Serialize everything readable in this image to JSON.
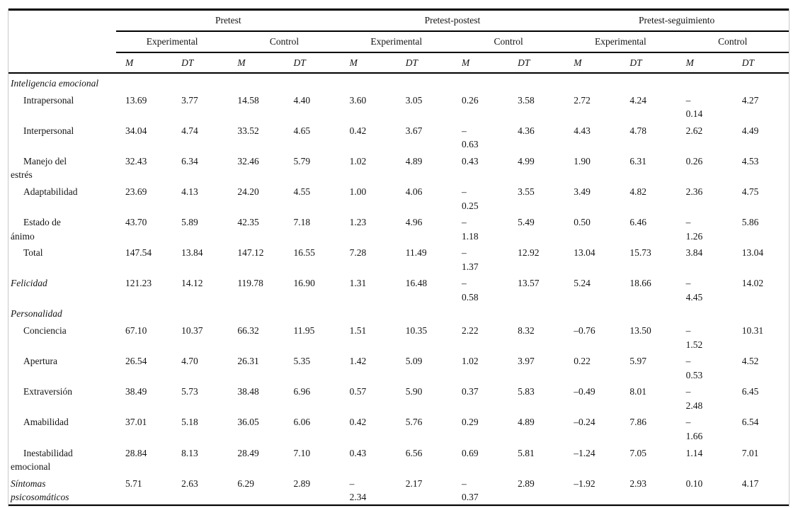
{
  "table": {
    "groups": [
      {
        "label": "Pretest"
      },
      {
        "label": "Pretest-postest"
      },
      {
        "label": "Pretest-seguimiento"
      }
    ],
    "subgroups": [
      "Experimental",
      "Control",
      "Experimental",
      "Control",
      "Experimental",
      "Control"
    ],
    "stat_headers": [
      "M",
      "DT",
      "M",
      "DT",
      "M",
      "DT",
      "M",
      "DT",
      "M",
      "DT",
      "M",
      "DT"
    ],
    "rows": [
      {
        "label": "Inteligencia emocional",
        "type": "section",
        "values": [
          "",
          "",
          "",
          "",
          "",
          "",
          "",
          "",
          "",
          "",
          "",
          ""
        ]
      },
      {
        "label": "Intrapersonal",
        "type": "sub",
        "values": [
          "13.69",
          "3.77",
          "14.58",
          "4.40",
          "3.60",
          "3.05",
          "0.26",
          "3.58",
          "2.72",
          "4.24",
          "–\n0.14",
          "4.27"
        ]
      },
      {
        "label": "Interpersonal",
        "type": "sub",
        "values": [
          "34.04",
          "4.74",
          "33.52",
          "4.65",
          "0.42",
          "3.67",
          "–\n0.63",
          "4.36",
          "4.43",
          "4.78",
          "2.62",
          "4.49"
        ]
      },
      {
        "label": "Manejo del\nestrés",
        "type": "sub",
        "values": [
          "32.43",
          "6.34",
          "32.46",
          "5.79",
          "1.02",
          "4.89",
          "0.43",
          "4.99",
          "1.90",
          "6.31",
          "0.26",
          "4.53"
        ]
      },
      {
        "label": "Adaptabilidad",
        "type": "sub",
        "values": [
          "23.69",
          "4.13",
          "24.20",
          "4.55",
          "1.00",
          "4.06",
          "–\n0.25",
          "3.55",
          "3.49",
          "4.82",
          "2.36",
          "4.75"
        ]
      },
      {
        "label": "Estado de\nánimo",
        "type": "sub",
        "values": [
          "43.70",
          "5.89",
          "42.35",
          "7.18",
          "1.23",
          "4.96",
          "–\n1.18",
          "5.49",
          "0.50",
          "6.46",
          "–\n1.26",
          "5.86"
        ]
      },
      {
        "label": "Total",
        "type": "sub",
        "values": [
          "147.54",
          "13.84",
          "147.12",
          "16.55",
          "7.28",
          "11.49",
          "–\n1.37",
          "12.92",
          "13.04",
          "15.73",
          "3.84",
          "13.04"
        ]
      },
      {
        "label": "Felicidad",
        "type": "flat",
        "values": [
          "121.23",
          "14.12",
          "119.78",
          "16.90",
          "1.31",
          "16.48",
          "–\n0.58",
          "13.57",
          "5.24",
          "18.66",
          "–\n4.45",
          "14.02"
        ]
      },
      {
        "label": "Personalidad",
        "type": "section",
        "values": [
          "",
          "",
          "",
          "",
          "",
          "",
          "",
          "",
          "",
          "",
          "",
          ""
        ]
      },
      {
        "label": "Conciencia",
        "type": "sub",
        "values": [
          "67.10",
          "10.37",
          "66.32",
          "11.95",
          "1.51",
          "10.35",
          "2.22",
          "8.32",
          "–0.76",
          "13.50",
          "–\n1.52",
          "10.31"
        ]
      },
      {
        "label": "Apertura",
        "type": "sub",
        "values": [
          "26.54",
          "4.70",
          "26.31",
          "5.35",
          "1.42",
          "5.09",
          "1.02",
          "3.97",
          "0.22",
          "5.97",
          "–\n0.53",
          "4.52"
        ]
      },
      {
        "label": "Extraversión",
        "type": "sub",
        "values": [
          "38.49",
          "5.73",
          "38.48",
          "6.96",
          "0.57",
          "5.90",
          "0.37",
          "5.83",
          "–0.49",
          "8.01",
          "–\n2.48",
          "6.45"
        ]
      },
      {
        "label": "Amabilidad",
        "type": "sub",
        "values": [
          "37.01",
          "5.18",
          "36.05",
          "6.06",
          "0.42",
          "5.76",
          "0.29",
          "4.89",
          "–0.24",
          "7.86",
          "–\n1.66",
          "6.54"
        ]
      },
      {
        "label": "Inestabilidad\nemocional",
        "type": "sub",
        "values": [
          "28.84",
          "8.13",
          "28.49",
          "7.10",
          "0.43",
          "6.56",
          "0.69",
          "5.81",
          "–1.24",
          "7.05",
          "1.14",
          "7.01"
        ]
      },
      {
        "label": "Síntomas\npsicosomáticos",
        "type": "flat",
        "values": [
          "5.71",
          "2.63",
          "6.29",
          "2.89",
          "–\n2.34",
          "2.17",
          "–\n0.37",
          "2.89",
          "–1.92",
          "2.93",
          "0.10",
          "4.17"
        ]
      }
    ]
  }
}
